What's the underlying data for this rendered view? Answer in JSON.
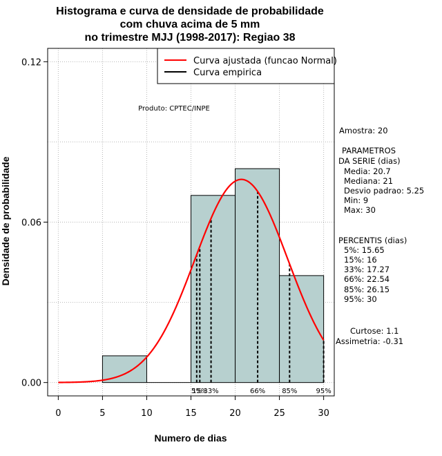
{
  "title_lines": [
    "Histograma e curva de densidade de probabilidade",
    "com chuva acima de 5 mm",
    "no trimestre MJJ (1998-2017): Regiao 38"
  ],
  "credit": "Produto: CPTEC/INPE",
  "side_panel": {
    "sample": "Amostra: 20",
    "params": [
      "PARAMETROS",
      "DA SERIE (dias)",
      "Media: 20.7",
      "Mediana: 21",
      "Desvio padrao: 5.25",
      "Min: 9",
      "Max: 30"
    ],
    "percentiles": [
      "PERCENTIS (dias)",
      "5%: 15.65",
      "15%: 16",
      "33%: 17.27",
      "66%: 22.54",
      "85%: 26.15",
      "95%: 30"
    ],
    "shape": [
      "Curtose: 1.1",
      "Assimetria: -0.31"
    ]
  },
  "colors": {
    "bar_fill": "#b7d0cf",
    "curve": "#ff0000",
    "empirical": "#000000",
    "grid": "#b5b5b5"
  },
  "chart_data": {
    "type": "bar",
    "title": "Histograma e curva de densidade de probabilidade com chuva acima de 5 mm no trimestre MJJ (1998-2017): Regiao 38",
    "xlabel": "Numero de dias",
    "ylabel": "Densidade de probabilidade",
    "xlim": [
      -1.2,
      31.2
    ],
    "ylim": [
      -0.005,
      0.125
    ],
    "x_ticks": [
      0,
      5,
      10,
      15,
      20,
      25,
      30
    ],
    "y_ticks": [
      0.0,
      0.06,
      0.12
    ],
    "y_tick_labels": [
      "0.00",
      "0.06",
      "0.12"
    ],
    "grid": true,
    "bins": [
      {
        "start": 5,
        "end": 10,
        "density": 0.01
      },
      {
        "start": 10,
        "end": 15,
        "density": 0.0
      },
      {
        "start": 15,
        "end": 20,
        "density": 0.07
      },
      {
        "start": 20,
        "end": 25,
        "density": 0.08
      },
      {
        "start": 25,
        "end": 30,
        "density": 0.04
      }
    ],
    "normal_fit": {
      "mean": 20.7,
      "sd": 5.25,
      "x_range": [
        0,
        30
      ]
    },
    "percentile_lines": [
      {
        "label": "5%",
        "value": 15.65
      },
      {
        "label": "15%",
        "value": 16
      },
      {
        "label": "33%",
        "value": 17.27
      },
      {
        "label": "66%",
        "value": 22.54
      },
      {
        "label": "85%",
        "value": 26.15
      },
      {
        "label": "95%",
        "value": 30
      }
    ],
    "percentile_tag_text": [
      "5%",
      "15%",
      "33%",
      "66%",
      "85%",
      "95%"
    ],
    "legend": {
      "position": "top-right",
      "entries": [
        "Curva ajustada (funcao Normal)",
        "Curva empirica"
      ]
    }
  }
}
